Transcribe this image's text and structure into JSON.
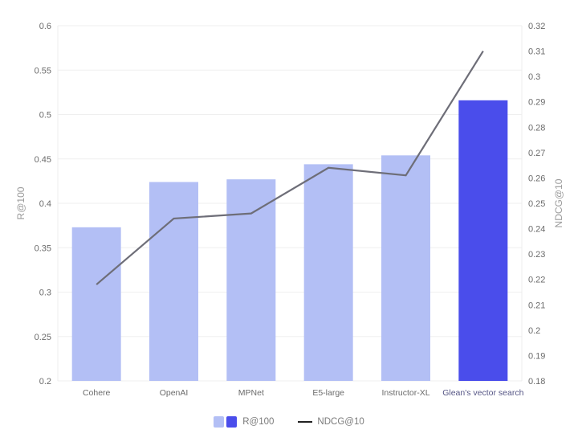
{
  "chart_data": {
    "type": "bar+line",
    "title": "",
    "categories": [
      "Cohere",
      "OpenAI",
      "MPNet",
      "E5-large",
      "Instructor-XL",
      "Glean's vector search"
    ],
    "series": [
      {
        "name": "R@100",
        "type": "bar",
        "axis": "left",
        "values": [
          0.373,
          0.424,
          0.427,
          0.444,
          0.454,
          0.516
        ],
        "colors": [
          "#b3bff5",
          "#b3bff5",
          "#b3bff5",
          "#b3bff5",
          "#b3bff5",
          "#4a4deb"
        ]
      },
      {
        "name": "NDCG@10",
        "type": "line",
        "axis": "right",
        "values": [
          0.218,
          0.244,
          0.246,
          0.264,
          0.261,
          0.31
        ],
        "color": "#6e6e78"
      }
    ],
    "ylabel": "R@100",
    "y2label": "NDCG@10",
    "ylim": [
      0.2,
      0.6
    ],
    "y2lim": [
      0.18,
      0.32
    ],
    "yticks": [
      "0.6",
      "0.55",
      "0.5",
      "0.45",
      "0.4",
      "0.35",
      "0.3",
      "0.25",
      "0.2"
    ],
    "y2ticks": [
      "0.32",
      "0.31",
      "0.3",
      "0.29",
      "0.28",
      "0.27",
      "0.26",
      "0.25",
      "0.24",
      "0.23",
      "0.22",
      "0.21",
      "0.2",
      "0.19",
      "0.18"
    ],
    "grid": true,
    "legend_position": "bottom"
  },
  "legend": {
    "bar_label": "R@100",
    "line_label": "NDCG@10",
    "bar_colors": [
      "#b3bff5",
      "#4a4deb"
    ],
    "line_color": "#222222"
  }
}
